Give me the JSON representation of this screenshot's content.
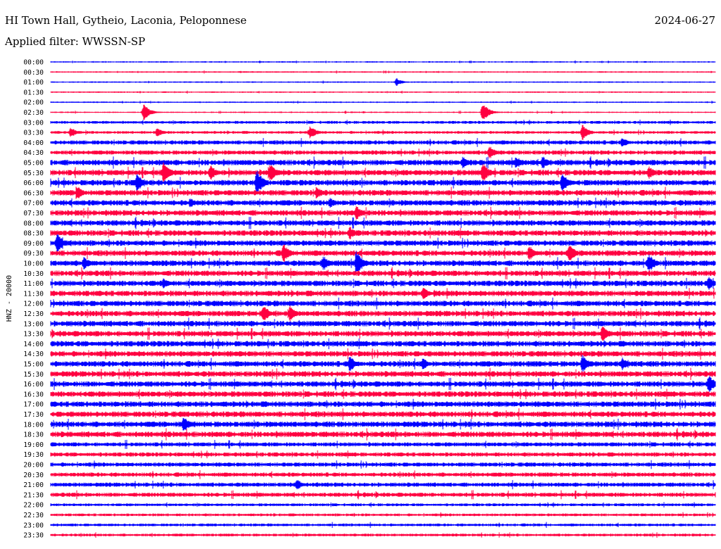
{
  "header": {
    "station": "HI Town Hall, Gytheio, Laconia, Peloponnese",
    "date": "2024-06-27",
    "filter": "Applied filter: WWSSN-SP"
  },
  "colors": {
    "even_rows": "#0000ff",
    "odd_rows": "#ff0040",
    "baseline": "#000000"
  },
  "chart_data": {
    "type": "line",
    "title": "HI Town Hall, Gytheio, Laconia, Peloponnese",
    "subtitle": "Applied filter: WWSSN-SP",
    "ylabel": "HNZ - 20000",
    "rows_per_hour": 2,
    "row_labels": [
      "00:00",
      "00:30",
      "01:00",
      "01:30",
      "02:00",
      "02:30",
      "03:00",
      "03:30",
      "04:00",
      "04:30",
      "05:00",
      "05:30",
      "06:00",
      "06:30",
      "07:00",
      "07:30",
      "08:00",
      "08:30",
      "09:00",
      "09:30",
      "10:00",
      "10:30",
      "11:00",
      "11:30",
      "12:00",
      "12:30",
      "13:00",
      "13:30",
      "14:00",
      "14:30",
      "15:00",
      "15:30",
      "16:00",
      "16:30",
      "17:00",
      "17:30",
      "18:00",
      "18:30",
      "19:00",
      "19:30",
      "20:00",
      "20:30",
      "21:00",
      "21:30",
      "22:00",
      "22:30",
      "23:00",
      "23:30"
    ],
    "noise_level": [
      1,
      1,
      1,
      1,
      1,
      1,
      2,
      2,
      3,
      3,
      4,
      4,
      4,
      4,
      4,
      4,
      4,
      4,
      4,
      4,
      4,
      4,
      4,
      4,
      4,
      4,
      4,
      4,
      4,
      4,
      4,
      4,
      4,
      4,
      4,
      4,
      4,
      4,
      3,
      3,
      3,
      3,
      3,
      3,
      2,
      2,
      2,
      2
    ],
    "events": [
      {
        "row": 2,
        "t": 0.52,
        "amp": 6
      },
      {
        "row": 5,
        "t": 0.14,
        "amp": 12
      },
      {
        "row": 5,
        "t": 0.65,
        "amp": 14
      },
      {
        "row": 7,
        "t": 0.03,
        "amp": 8
      },
      {
        "row": 7,
        "t": 0.16,
        "amp": 7
      },
      {
        "row": 7,
        "t": 0.39,
        "amp": 10
      },
      {
        "row": 7,
        "t": 0.8,
        "amp": 12
      },
      {
        "row": 8,
        "t": 0.86,
        "amp": 8
      },
      {
        "row": 9,
        "t": 0.66,
        "amp": 10
      },
      {
        "row": 10,
        "t": 0.62,
        "amp": 10
      },
      {
        "row": 10,
        "t": 0.7,
        "amp": 10
      },
      {
        "row": 10,
        "t": 0.74,
        "amp": 10
      },
      {
        "row": 11,
        "t": 0.17,
        "amp": 18
      },
      {
        "row": 11,
        "t": 0.24,
        "amp": 12
      },
      {
        "row": 11,
        "t": 0.33,
        "amp": 14
      },
      {
        "row": 11,
        "t": 0.65,
        "amp": 16
      },
      {
        "row": 11,
        "t": 0.9,
        "amp": 10
      },
      {
        "row": 12,
        "t": 0.13,
        "amp": 14
      },
      {
        "row": 12,
        "t": 0.31,
        "amp": 20
      },
      {
        "row": 12,
        "t": 0.77,
        "amp": 16
      },
      {
        "row": 13,
        "t": 0.04,
        "amp": 10
      },
      {
        "row": 13,
        "t": 0.4,
        "amp": 10
      },
      {
        "row": 14,
        "t": 0.21,
        "amp": 8
      },
      {
        "row": 14,
        "t": 0.42,
        "amp": 8
      },
      {
        "row": 15,
        "t": 0.46,
        "amp": 11
      },
      {
        "row": 17,
        "t": 0.45,
        "amp": 10
      },
      {
        "row": 18,
        "t": 0.01,
        "amp": 14
      },
      {
        "row": 19,
        "t": 0.35,
        "amp": 16
      },
      {
        "row": 19,
        "t": 0.72,
        "amp": 12
      },
      {
        "row": 19,
        "t": 0.78,
        "amp": 14
      },
      {
        "row": 20,
        "t": 0.05,
        "amp": 10
      },
      {
        "row": 20,
        "t": 0.41,
        "amp": 12
      },
      {
        "row": 20,
        "t": 0.46,
        "amp": 20
      },
      {
        "row": 20,
        "t": 0.9,
        "amp": 16
      },
      {
        "row": 22,
        "t": 0.17,
        "amp": 8
      },
      {
        "row": 22,
        "t": 0.99,
        "amp": 10
      },
      {
        "row": 23,
        "t": 0.56,
        "amp": 10
      },
      {
        "row": 25,
        "t": 0.32,
        "amp": 14
      },
      {
        "row": 25,
        "t": 0.36,
        "amp": 12
      },
      {
        "row": 27,
        "t": 0.83,
        "amp": 13
      },
      {
        "row": 30,
        "t": 0.45,
        "amp": 12
      },
      {
        "row": 30,
        "t": 0.56,
        "amp": 9
      },
      {
        "row": 30,
        "t": 0.8,
        "amp": 14
      },
      {
        "row": 30,
        "t": 0.86,
        "amp": 10
      },
      {
        "row": 32,
        "t": 0.99,
        "amp": 14
      },
      {
        "row": 36,
        "t": 0.2,
        "amp": 12
      },
      {
        "row": 42,
        "t": 0.37,
        "amp": 9
      }
    ]
  }
}
